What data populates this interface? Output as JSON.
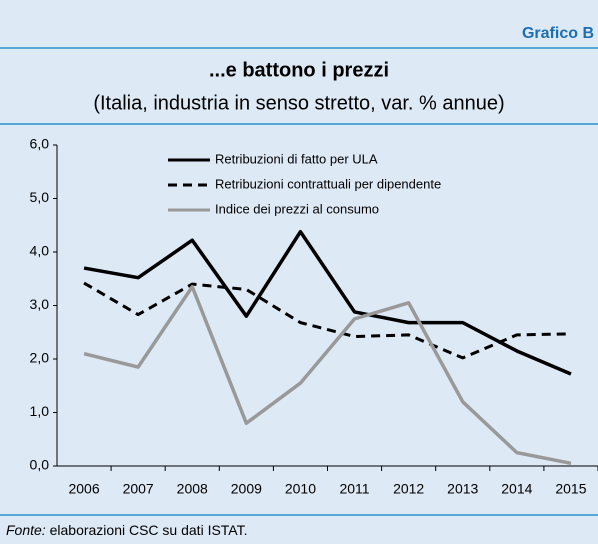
{
  "chart_data": {
    "type": "line",
    "label": "Grafico B",
    "title": "...e battono i prezzi",
    "subtitle": "(Italia, industria in senso stretto, var. % annue)",
    "categories": [
      "2006",
      "2007",
      "2008",
      "2009",
      "2010",
      "2011",
      "2012",
      "2013",
      "2014",
      "2015"
    ],
    "series": [
      {
        "name": "Retribuzioni di fatto per ULA",
        "color": "#000000",
        "dash": "solid",
        "values": [
          3.7,
          3.52,
          4.22,
          2.8,
          4.38,
          2.88,
          2.68,
          2.68,
          2.15,
          1.72
        ]
      },
      {
        "name": "Retribuzioni contrattuali per dipendente",
        "color": "#000000",
        "dash": "dashed",
        "values": [
          3.42,
          2.83,
          3.4,
          3.3,
          2.68,
          2.42,
          2.45,
          2.02,
          2.45,
          2.47
        ]
      },
      {
        "name": "Indice dei prezzi al consumo",
        "color": "#999999",
        "dash": "solid",
        "values": [
          2.1,
          1.85,
          3.35,
          0.8,
          1.55,
          2.75,
          3.05,
          1.2,
          0.25,
          0.05
        ]
      }
    ],
    "ylim": [
      0,
      6
    ],
    "yticks": [
      {
        "value": 0,
        "label": "0,0"
      },
      {
        "value": 1,
        "label": "1,0"
      },
      {
        "value": 2,
        "label": "2,0"
      },
      {
        "value": 3,
        "label": "3,0"
      },
      {
        "value": 4,
        "label": "4,0"
      },
      {
        "value": 5,
        "label": "5,0"
      },
      {
        "value": 6,
        "label": "6,0"
      }
    ],
    "grid": false,
    "legend": "top",
    "source_label": "Fonte:",
    "source": "elaborazioni CSC su dati ISTAT."
  }
}
